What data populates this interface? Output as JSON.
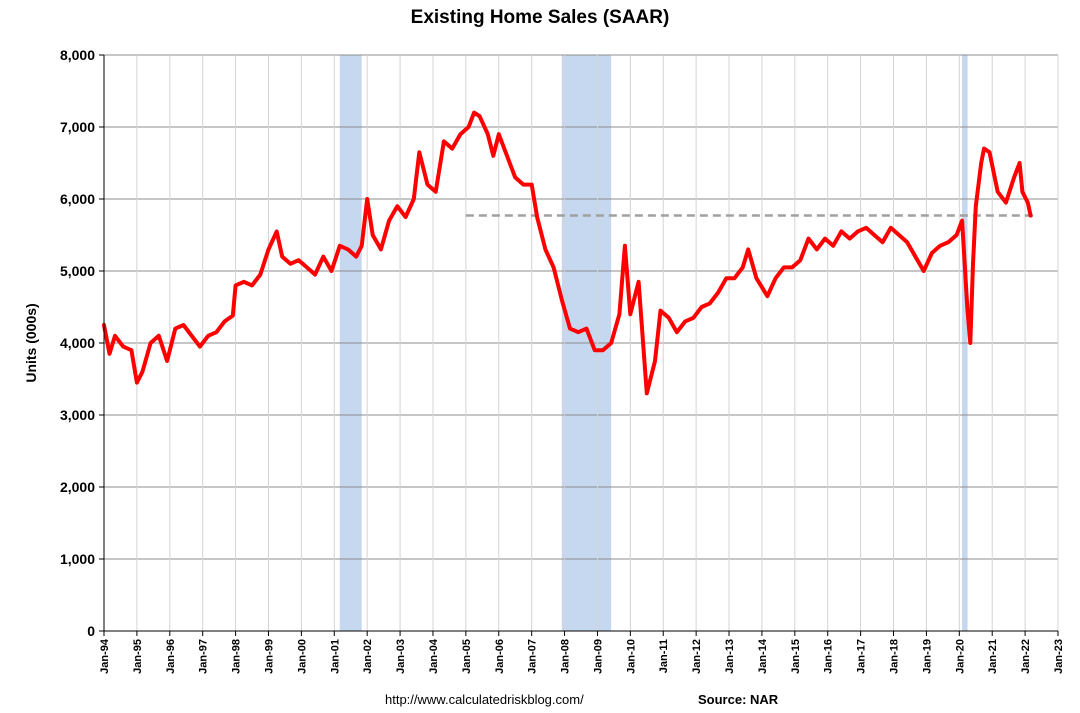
{
  "chart_data": {
    "type": "line",
    "title": "Existing Home Sales (SAAR)",
    "ylabel": "Units (000s)",
    "xlabel": "",
    "ylim": [
      0,
      8000
    ],
    "y_ticks": [
      "0",
      "1,000",
      "2,000",
      "3,000",
      "4,000",
      "5,000",
      "6,000",
      "7,000",
      "8,000"
    ],
    "y_tick_values": [
      0,
      1000,
      2000,
      3000,
      4000,
      5000,
      6000,
      7000,
      8000
    ],
    "x_ticks": [
      "Jan-94",
      "Jan-95",
      "Jan-96",
      "Jan-97",
      "Jan-98",
      "Jan-99",
      "Jan-00",
      "Jan-01",
      "Jan-02",
      "Jan-03",
      "Jan-04",
      "Jan-05",
      "Jan-06",
      "Jan-07",
      "Jan-08",
      "Jan-09",
      "Jan-10",
      "Jan-11",
      "Jan-12",
      "Jan-13",
      "Jan-14",
      "Jan-15",
      "Jan-16",
      "Jan-17",
      "Jan-18",
      "Jan-19",
      "Jan-20",
      "Jan-21",
      "Jan-22",
      "Jan-23"
    ],
    "xlim": [
      "1994-01",
      "2023-01"
    ],
    "grid": true,
    "recessions": [
      {
        "start": "2001-03",
        "end": "2001-11"
      },
      {
        "start": "2007-12",
        "end": "2009-06"
      },
      {
        "start": "2020-02",
        "end": "2020-04"
      }
    ],
    "reference_line": {
      "value": 5770,
      "start": "2005-01",
      "end": "2022-04",
      "style": "dashed",
      "color": "#a0a0a0"
    },
    "series": [
      {
        "color": "#ff0000",
        "points": [
          [
            "1994-01",
            4250
          ],
          [
            "1994-03",
            3850
          ],
          [
            "1994-05",
            4100
          ],
          [
            "1994-08",
            3950
          ],
          [
            "1994-11",
            3900
          ],
          [
            "1995-01",
            3450
          ],
          [
            "1995-03",
            3600
          ],
          [
            "1995-06",
            4000
          ],
          [
            "1995-09",
            4100
          ],
          [
            "1995-12",
            3750
          ],
          [
            "1996-03",
            4200
          ],
          [
            "1996-06",
            4250
          ],
          [
            "1996-09",
            4100
          ],
          [
            "1996-12",
            3950
          ],
          [
            "1997-03",
            4100
          ],
          [
            "1997-06",
            4150
          ],
          [
            "1997-09",
            4300
          ],
          [
            "1997-12",
            4380
          ],
          [
            "1998-01",
            4800
          ],
          [
            "1998-04",
            4850
          ],
          [
            "1998-07",
            4800
          ],
          [
            "1998-10",
            4950
          ],
          [
            "1999-01",
            5300
          ],
          [
            "1999-04",
            5550
          ],
          [
            "1999-06",
            5200
          ],
          [
            "1999-09",
            5100
          ],
          [
            "1999-12",
            5150
          ],
          [
            "2000-03",
            5050
          ],
          [
            "2000-06",
            4950
          ],
          [
            "2000-09",
            5200
          ],
          [
            "2000-12",
            5000
          ],
          [
            "2001-03",
            5350
          ],
          [
            "2001-06",
            5300
          ],
          [
            "2001-09",
            5200
          ],
          [
            "2001-11",
            5350
          ],
          [
            "2002-01",
            6000
          ],
          [
            "2002-03",
            5500
          ],
          [
            "2002-06",
            5300
          ],
          [
            "2002-09",
            5700
          ],
          [
            "2002-12",
            5900
          ],
          [
            "2003-03",
            5750
          ],
          [
            "2003-06",
            6000
          ],
          [
            "2003-08",
            6650
          ],
          [
            "2003-11",
            6200
          ],
          [
            "2004-02",
            6100
          ],
          [
            "2004-05",
            6800
          ],
          [
            "2004-08",
            6700
          ],
          [
            "2004-11",
            6900
          ],
          [
            "2005-02",
            7000
          ],
          [
            "2005-04",
            7200
          ],
          [
            "2005-06",
            7150
          ],
          [
            "2005-09",
            6900
          ],
          [
            "2005-11",
            6600
          ],
          [
            "2006-01",
            6900
          ],
          [
            "2006-04",
            6600
          ],
          [
            "2006-07",
            6300
          ],
          [
            "2006-10",
            6200
          ],
          [
            "2007-01",
            6200
          ],
          [
            "2007-03",
            5750
          ],
          [
            "2007-06",
            5300
          ],
          [
            "2007-09",
            5050
          ],
          [
            "2007-12",
            4600
          ],
          [
            "2008-03",
            4200
          ],
          [
            "2008-06",
            4150
          ],
          [
            "2008-09",
            4200
          ],
          [
            "2008-12",
            3900
          ],
          [
            "2009-03",
            3900
          ],
          [
            "2009-06",
            4000
          ],
          [
            "2009-09",
            4400
          ],
          [
            "2009-11",
            5350
          ],
          [
            "2010-01",
            4400
          ],
          [
            "2010-04",
            4850
          ],
          [
            "2010-07",
            3300
          ],
          [
            "2010-10",
            3750
          ],
          [
            "2010-12",
            4450
          ],
          [
            "2011-03",
            4350
          ],
          [
            "2011-06",
            4150
          ],
          [
            "2011-09",
            4300
          ],
          [
            "2011-12",
            4350
          ],
          [
            "2012-03",
            4500
          ],
          [
            "2012-06",
            4550
          ],
          [
            "2012-09",
            4700
          ],
          [
            "2012-12",
            4900
          ],
          [
            "2013-03",
            4900
          ],
          [
            "2013-06",
            5050
          ],
          [
            "2013-08",
            5300
          ],
          [
            "2013-11",
            4900
          ],
          [
            "2014-03",
            4650
          ],
          [
            "2014-06",
            4900
          ],
          [
            "2014-09",
            5050
          ],
          [
            "2014-12",
            5050
          ],
          [
            "2015-03",
            5150
          ],
          [
            "2015-06",
            5450
          ],
          [
            "2015-09",
            5300
          ],
          [
            "2015-12",
            5450
          ],
          [
            "2016-03",
            5350
          ],
          [
            "2016-06",
            5550
          ],
          [
            "2016-09",
            5450
          ],
          [
            "2016-12",
            5550
          ],
          [
            "2017-03",
            5600
          ],
          [
            "2017-06",
            5500
          ],
          [
            "2017-09",
            5400
          ],
          [
            "2017-12",
            5600
          ],
          [
            "2018-03",
            5500
          ],
          [
            "2018-06",
            5400
          ],
          [
            "2018-09",
            5200
          ],
          [
            "2018-12",
            5000
          ],
          [
            "2019-03",
            5250
          ],
          [
            "2019-06",
            5350
          ],
          [
            "2019-09",
            5400
          ],
          [
            "2019-12",
            5500
          ],
          [
            "2020-02",
            5700
          ],
          [
            "2020-04",
            4450
          ],
          [
            "2020-05",
            4000
          ],
          [
            "2020-06",
            5100
          ],
          [
            "2020-07",
            5900
          ],
          [
            "2020-09",
            6500
          ],
          [
            "2020-10",
            6700
          ],
          [
            "2020-12",
            6650
          ],
          [
            "2021-03",
            6100
          ],
          [
            "2021-06",
            5950
          ],
          [
            "2021-09",
            6300
          ],
          [
            "2021-11",
            6500
          ],
          [
            "2021-12",
            6100
          ],
          [
            "2022-02",
            5950
          ],
          [
            "2022-03",
            5770
          ]
        ]
      }
    ]
  },
  "footer": {
    "url": "http://www.calculatedriskblog.com/",
    "source": "Source: NAR"
  }
}
